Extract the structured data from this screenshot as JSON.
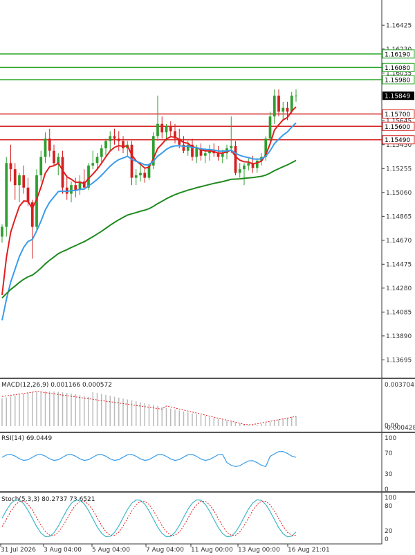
{
  "chart_data": {
    "type": "candlestick",
    "colors": {
      "bull": "#2e9e2e",
      "bear": "#d42020",
      "ma_fast": "#e01e1e",
      "ma_mid": "#3a9ce8",
      "ma_slow": "#1f8a1f",
      "level_green": "#26a526",
      "level_red": "#d42020",
      "price_label_bg": "#000000",
      "macd_hist": "#bbbbbb",
      "macd_signal": "#e01e1e",
      "rsi": "#3a9ce8",
      "stoch_main": "#3fb8c8",
      "stoch_signal": "#e01e1e",
      "separator": "#555555"
    },
    "price_axis": {
      "min": 1.1355,
      "max": 1.1663,
      "ticks": [
        "1.16425",
        "1.16230",
        "1.16035",
        "1.15645",
        "1.15450",
        "1.15255",
        "1.15060",
        "1.14865",
        "1.14670",
        "1.14475",
        "1.14280",
        "1.14085",
        "1.13890",
        "1.13695"
      ]
    },
    "levels": [
      {
        "value": 1.1619,
        "label": "1.16190",
        "color": "green"
      },
      {
        "value": 1.1608,
        "label": "1.16080",
        "color": "green"
      },
      {
        "value": 1.1598,
        "label": "1.15980",
        "color": "green"
      },
      {
        "value": 1.157,
        "label": "1.15700",
        "color": "red"
      },
      {
        "value": 1.156,
        "label": "1.15600",
        "color": "red"
      },
      {
        "value": 1.1549,
        "label": "1.15490",
        "color": "red"
      }
    ],
    "current_price": {
      "value": 1.15849,
      "label": "1.15849"
    },
    "x_labels": [
      "31 Jul 2026",
      "3 Aug 04:00",
      "5 Aug 04:00",
      "7 Aug 04:00",
      "11 Aug 00:00",
      "13 Aug 00:00",
      "16 Aug 21:01"
    ],
    "candles": [
      {
        "o": 1.147,
        "h": 1.148,
        "l": 1.1465,
        "c": 1.1478
      },
      {
        "o": 1.1478,
        "h": 1.1535,
        "l": 1.147,
        "c": 1.153
      },
      {
        "o": 1.153,
        "h": 1.1545,
        "l": 1.1515,
        "c": 1.1525
      },
      {
        "o": 1.1525,
        "h": 1.153,
        "l": 1.15,
        "c": 1.1512
      },
      {
        "o": 1.1512,
        "h": 1.1522,
        "l": 1.1498,
        "c": 1.152
      },
      {
        "o": 1.152,
        "h": 1.1528,
        "l": 1.1505,
        "c": 1.151
      },
      {
        "o": 1.151,
        "h": 1.1518,
        "l": 1.1495,
        "c": 1.1498
      },
      {
        "o": 1.1498,
        "h": 1.15,
        "l": 1.1452,
        "c": 1.1478
      },
      {
        "o": 1.1478,
        "h": 1.1525,
        "l": 1.1475,
        "c": 1.152
      },
      {
        "o": 1.152,
        "h": 1.154,
        "l": 1.1515,
        "c": 1.1535
      },
      {
        "o": 1.1535,
        "h": 1.1555,
        "l": 1.153,
        "c": 1.155
      },
      {
        "o": 1.155,
        "h": 1.1558,
        "l": 1.1535,
        "c": 1.154
      },
      {
        "o": 1.154,
        "h": 1.1545,
        "l": 1.1528,
        "c": 1.153
      },
      {
        "o": 1.153,
        "h": 1.1538,
        "l": 1.152,
        "c": 1.1535
      },
      {
        "o": 1.1535,
        "h": 1.154,
        "l": 1.1505,
        "c": 1.151
      },
      {
        "o": 1.151,
        "h": 1.152,
        "l": 1.15,
        "c": 1.1505
      },
      {
        "o": 1.1505,
        "h": 1.1515,
        "l": 1.1498,
        "c": 1.1512
      },
      {
        "o": 1.1512,
        "h": 1.1518,
        "l": 1.1502,
        "c": 1.1508
      },
      {
        "o": 1.1508,
        "h": 1.152,
        "l": 1.1504,
        "c": 1.1515
      },
      {
        "o": 1.1515,
        "h": 1.1525,
        "l": 1.151,
        "c": 1.151
      },
      {
        "o": 1.151,
        "h": 1.153,
        "l": 1.1508,
        "c": 1.1528
      },
      {
        "o": 1.1528,
        "h": 1.154,
        "l": 1.1525,
        "c": 1.153
      },
      {
        "o": 1.153,
        "h": 1.1538,
        "l": 1.1525,
        "c": 1.1535
      },
      {
        "o": 1.1535,
        "h": 1.1545,
        "l": 1.153,
        "c": 1.1542
      },
      {
        "o": 1.1542,
        "h": 1.155,
        "l": 1.1536,
        "c": 1.1548
      },
      {
        "o": 1.1548,
        "h": 1.1556,
        "l": 1.154,
        "c": 1.1552
      },
      {
        "o": 1.1552,
        "h": 1.1558,
        "l": 1.1545,
        "c": 1.155
      },
      {
        "o": 1.155,
        "h": 1.1556,
        "l": 1.154,
        "c": 1.1548
      },
      {
        "o": 1.1548,
        "h": 1.1552,
        "l": 1.1538,
        "c": 1.1542
      },
      {
        "o": 1.1542,
        "h": 1.1548,
        "l": 1.1535,
        "c": 1.1545
      },
      {
        "o": 1.1545,
        "h": 1.1548,
        "l": 1.1512,
        "c": 1.1518
      },
      {
        "o": 1.1518,
        "h": 1.1525,
        "l": 1.1512,
        "c": 1.152
      },
      {
        "o": 1.152,
        "h": 1.1528,
        "l": 1.1515,
        "c": 1.1522
      },
      {
        "o": 1.1522,
        "h": 1.1526,
        "l": 1.1514,
        "c": 1.1518
      },
      {
        "o": 1.1518,
        "h": 1.153,
        "l": 1.1516,
        "c": 1.1528
      },
      {
        "o": 1.1528,
        "h": 1.1555,
        "l": 1.1525,
        "c": 1.1552
      },
      {
        "o": 1.1552,
        "h": 1.1585,
        "l": 1.1548,
        "c": 1.1562
      },
      {
        "o": 1.1562,
        "h": 1.1568,
        "l": 1.155,
        "c": 1.1555
      },
      {
        "o": 1.1555,
        "h": 1.1562,
        "l": 1.1548,
        "c": 1.156
      },
      {
        "o": 1.156,
        "h": 1.1564,
        "l": 1.1552,
        "c": 1.1556
      },
      {
        "o": 1.1556,
        "h": 1.1562,
        "l": 1.1546,
        "c": 1.155
      },
      {
        "o": 1.155,
        "h": 1.1558,
        "l": 1.1542,
        "c": 1.1545
      },
      {
        "o": 1.1545,
        "h": 1.1552,
        "l": 1.1538,
        "c": 1.154
      },
      {
        "o": 1.154,
        "h": 1.1548,
        "l": 1.1536,
        "c": 1.1545
      },
      {
        "o": 1.1545,
        "h": 1.155,
        "l": 1.1532,
        "c": 1.1535
      },
      {
        "o": 1.1535,
        "h": 1.1545,
        "l": 1.153,
        "c": 1.1542
      },
      {
        "o": 1.1542,
        "h": 1.1546,
        "l": 1.1532,
        "c": 1.1536
      },
      {
        "o": 1.1536,
        "h": 1.1542,
        "l": 1.153,
        "c": 1.1538
      },
      {
        "o": 1.1538,
        "h": 1.1545,
        "l": 1.1532,
        "c": 1.154
      },
      {
        "o": 1.154,
        "h": 1.1546,
        "l": 1.1535,
        "c": 1.1538
      },
      {
        "o": 1.1538,
        "h": 1.1544,
        "l": 1.1532,
        "c": 1.1535
      },
      {
        "o": 1.1535,
        "h": 1.1541,
        "l": 1.153,
        "c": 1.1538
      },
      {
        "o": 1.1538,
        "h": 1.1545,
        "l": 1.1533,
        "c": 1.1542
      },
      {
        "o": 1.1542,
        "h": 1.1568,
        "l": 1.1538,
        "c": 1.1544
      },
      {
        "o": 1.1544,
        "h": 1.1548,
        "l": 1.152,
        "c": 1.1522
      },
      {
        "o": 1.1522,
        "h": 1.153,
        "l": 1.1518,
        "c": 1.1525
      },
      {
        "o": 1.1525,
        "h": 1.153,
        "l": 1.1512,
        "c": 1.1528
      },
      {
        "o": 1.1528,
        "h": 1.1535,
        "l": 1.1524,
        "c": 1.153
      },
      {
        "o": 1.153,
        "h": 1.1536,
        "l": 1.1522,
        "c": 1.1526
      },
      {
        "o": 1.1526,
        "h": 1.1534,
        "l": 1.1522,
        "c": 1.1532
      },
      {
        "o": 1.1532,
        "h": 1.1538,
        "l": 1.1528,
        "c": 1.1535
      },
      {
        "o": 1.1535,
        "h": 1.1552,
        "l": 1.1532,
        "c": 1.155
      },
      {
        "o": 1.155,
        "h": 1.1572,
        "l": 1.1548,
        "c": 1.1568
      },
      {
        "o": 1.1568,
        "h": 1.159,
        "l": 1.1562,
        "c": 1.1585
      },
      {
        "o": 1.1585,
        "h": 1.159,
        "l": 1.1568,
        "c": 1.1572
      },
      {
        "o": 1.1572,
        "h": 1.158,
        "l": 1.1565,
        "c": 1.1575
      },
      {
        "o": 1.1575,
        "h": 1.158,
        "l": 1.1565,
        "c": 1.1572
      },
      {
        "o": 1.1572,
        "h": 1.1588,
        "l": 1.157,
        "c": 1.1585
      },
      {
        "o": 1.1585,
        "h": 1.159,
        "l": 1.158,
        "c": 1.1585
      }
    ],
    "indicators": {
      "macd": {
        "label": "MACD(12,26,9) 0.001166 0.000572",
        "max_tick": "0.003704",
        "min_tick": "-0.000428",
        "zero_tick": "0.00"
      },
      "rsi": {
        "label": "RSI(14) 69.0449",
        "ticks": [
          "100",
          "70",
          "30",
          "0"
        ]
      },
      "stoch": {
        "label": "Stoch(5,3,3) 80.2737 73.6521",
        "ticks": [
          "100",
          "80",
          "20",
          "0"
        ]
      }
    }
  }
}
